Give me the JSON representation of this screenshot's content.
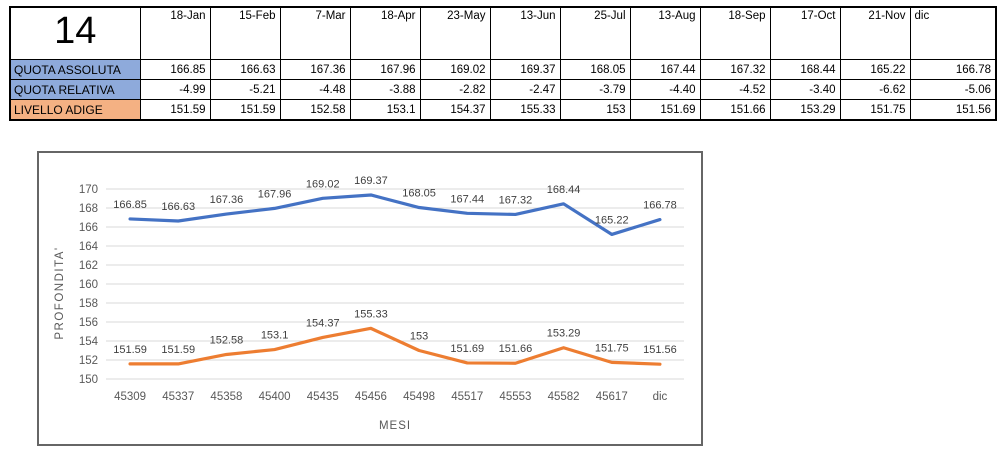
{
  "table": {
    "corner_label": "14",
    "columns": [
      "18-Jan",
      "15-Feb",
      "7-Mar",
      "18-Apr",
      "23-May",
      "13-Jun",
      "25-Jul",
      "13-Aug",
      "18-Sep",
      "17-Oct",
      "21-Nov",
      "dic"
    ],
    "rows": [
      {
        "label": "QUOTA ASSOLUTA",
        "color": "#8EAADB",
        "values": [
          "166.85",
          "166.63",
          "167.36",
          "167.96",
          "169.02",
          "169.37",
          "168.05",
          "167.44",
          "167.32",
          "168.44",
          "165.22",
          "166.78"
        ]
      },
      {
        "label": "QUOTA RELATIVA",
        "color": "#8EAADB",
        "values": [
          "-4.99",
          "-5.21",
          "-4.48",
          "-3.88",
          "-2.82",
          "-2.47",
          "-3.79",
          "-4.40",
          "-4.52",
          "-3.40",
          "-6.62",
          "-5.06"
        ]
      },
      {
        "label": "LIVELLO ADIGE",
        "color": "#F4B183",
        "values": [
          "151.59",
          "151.59",
          "152.58",
          "153.1",
          "154.37",
          "155.33",
          "153",
          "151.69",
          "151.66",
          "153.29",
          "151.75",
          "151.56"
        ]
      }
    ]
  },
  "chart_data": {
    "type": "line",
    "title": "",
    "categories": [
      "45309",
      "45337",
      "45358",
      "45400",
      "45435",
      "45456",
      "45498",
      "45517",
      "45553",
      "45582",
      "45617",
      "dic"
    ],
    "series": [
      {
        "name": "QUOTA ASSOLUTA",
        "color": "#4472C4",
        "values": [
          166.85,
          166.63,
          167.36,
          167.96,
          169.02,
          169.37,
          168.05,
          167.44,
          167.32,
          168.44,
          165.22,
          166.78
        ]
      },
      {
        "name": "LIVELLO ADIGE",
        "color": "#ED7D31",
        "values": [
          151.59,
          151.59,
          152.58,
          153.1,
          154.37,
          155.33,
          153,
          151.69,
          151.66,
          153.29,
          151.75,
          151.56
        ]
      }
    ],
    "xlabel": "MESI",
    "ylabel": "PROFONDITA'",
    "ylim": [
      150,
      170
    ],
    "ytick_step": 2,
    "grid": true,
    "legend": "none",
    "data_labels": true,
    "gridline_color": "#D9D9D9",
    "axis_text_color": "#595959",
    "label_text_color": "#404040"
  }
}
